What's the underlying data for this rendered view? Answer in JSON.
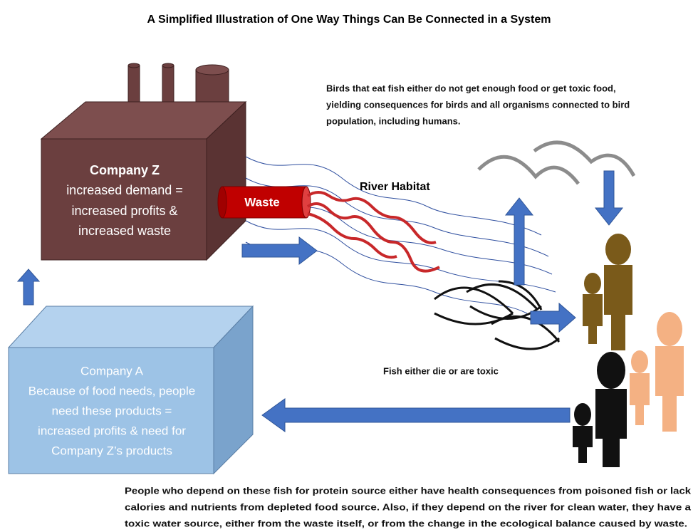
{
  "title": "A Simplified Illustration of One Way Things Can Be Connected in a System",
  "company_z": {
    "name": "Company Z",
    "lines": [
      "increased demand =",
      "increased profits &",
      "increased waste"
    ]
  },
  "waste": "Waste",
  "river": "River Habitat",
  "birds_note": [
    "Birds that eat fish either do not get enough food or get toxic food,",
    "yielding consequences for birds and all organisms connected to bird",
    "population, including humans."
  ],
  "fish_note": "Fish either die or are toxic",
  "company_a": {
    "name": "Company A",
    "lines": [
      "Because of food needs, people",
      "need these products =",
      "increased profits & need for",
      "Company Z’s products"
    ]
  },
  "people_note": [
    "People who depend on these fish for protein source either have health consequences from poisoned fish or lack",
    "calories and nutrients from depleted food source. Also, if they depend on the river for clean water, they have a",
    "toxic water source, either from the waste itself, or from the change in the ecological balance caused by waste."
  ]
}
